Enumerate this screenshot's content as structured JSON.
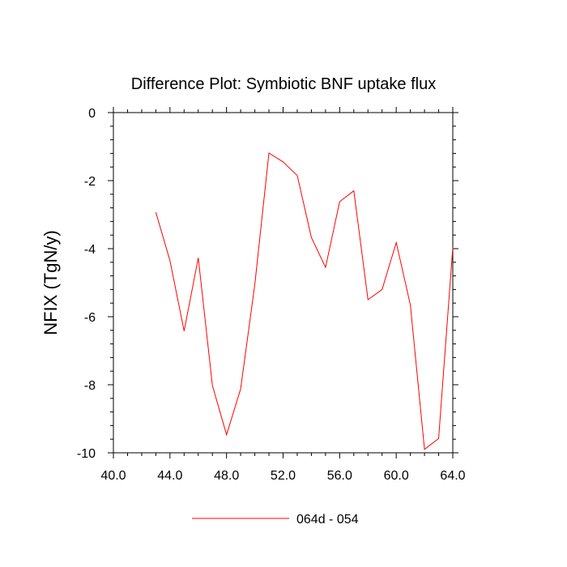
{
  "chart_data": {
    "type": "line",
    "title": "Difference Plot: Symbiotic BNF uptake flux",
    "xlabel": "",
    "ylabel": "NFIX  (TgN/y)",
    "xlim": [
      40,
      64
    ],
    "ylim": [
      -10,
      0
    ],
    "x_ticks": [
      "40.0",
      "44.0",
      "48.0",
      "52.0",
      "56.0",
      "60.0",
      "64.0"
    ],
    "y_ticks": [
      "0",
      "-2",
      "-4",
      "-6",
      "-8",
      "-10"
    ],
    "legend_position": "bottom-center",
    "series": [
      {
        "name": "064d - 054",
        "color": "#ff0000",
        "x": [
          43,
          44,
          45,
          46,
          47,
          48,
          49,
          50,
          51,
          52,
          53,
          54,
          55,
          56,
          57,
          58,
          59,
          60,
          61,
          62,
          63,
          64
        ],
        "y": [
          -2.93,
          -4.35,
          -6.42,
          -4.27,
          -8.02,
          -9.47,
          -8.12,
          -5.05,
          -1.19,
          -1.45,
          -1.85,
          -3.67,
          -4.55,
          -2.62,
          -2.3,
          -5.5,
          -5.2,
          -3.82,
          -5.65,
          -9.9,
          -9.58,
          -3.97
        ]
      }
    ]
  }
}
